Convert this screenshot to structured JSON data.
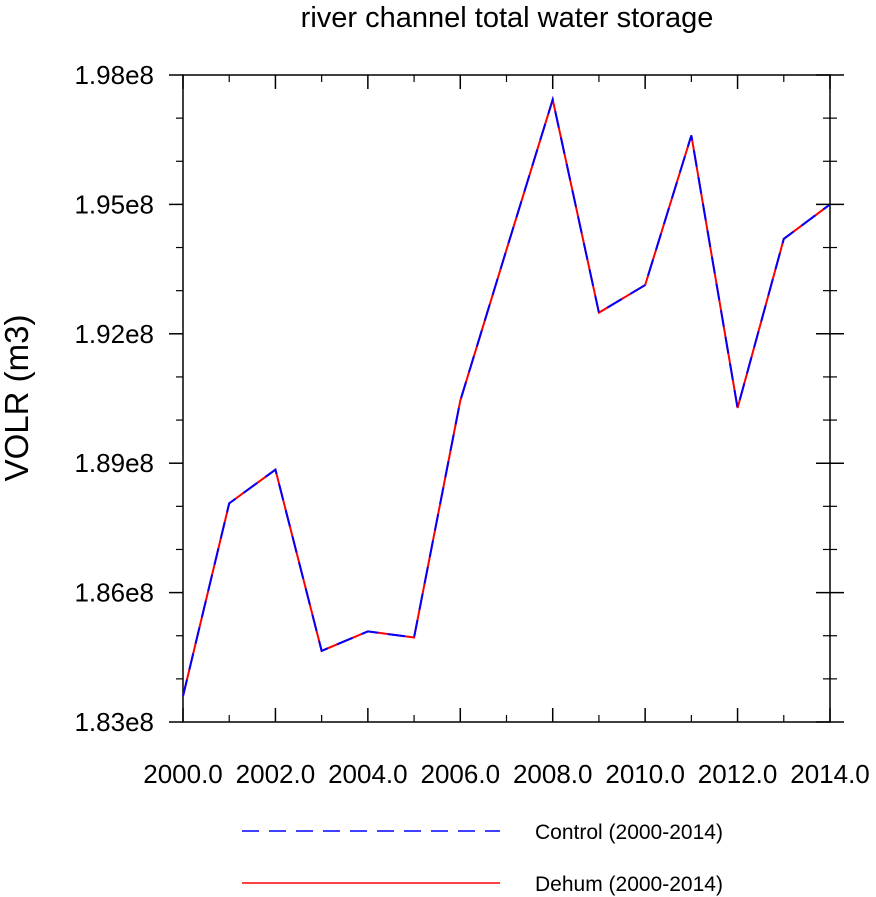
{
  "chart_data": {
    "type": "line",
    "title": "river channel total water storage",
    "ylabel": "VOLR  (m3)",
    "xlabel": "",
    "xlim": [
      2000.0,
      2014.0
    ],
    "ylim": [
      183000000,
      198000000
    ],
    "x_ticks": [
      2000,
      2002,
      2004,
      2006,
      2008,
      2010,
      2012,
      2014
    ],
    "x_tick_labels": [
      "2000.0",
      "2002.0",
      "2004.0",
      "2006.0",
      "2008.0",
      "2010.0",
      "2012.0",
      "2014.0"
    ],
    "y_ticks": [
      183000000,
      186000000,
      189000000,
      192000000,
      195000000,
      198000000
    ],
    "y_tick_labels": [
      "1.83e8",
      "1.86e8",
      "1.89e8",
      "1.92e8",
      "1.95e8",
      "1.98e8"
    ],
    "x": [
      2000,
      2001,
      2002,
      2003,
      2004,
      2005,
      2006,
      2007,
      2008,
      2009,
      2010,
      2011,
      2012,
      2013,
      2014
    ],
    "series": [
      {
        "name": "Control (2000-2014)",
        "color": "#0000ff",
        "dash": "dashed",
        "values": [
          183600000,
          188070000,
          188850000,
          184650000,
          185100000,
          184960000,
          190450000,
          193950000,
          197430000,
          192490000,
          193130000,
          196600000,
          190280000,
          194200000,
          195000000
        ]
      },
      {
        "name": "Dehum (2000-2014)",
        "color": "#ff0000",
        "dash": "solid",
        "values": [
          183600000,
          188070000,
          188850000,
          184650000,
          185100000,
          184960000,
          190450000,
          193950000,
          197430000,
          192490000,
          193130000,
          196600000,
          190280000,
          194200000,
          195000000
        ]
      }
    ],
    "legend_position": "bottom"
  }
}
